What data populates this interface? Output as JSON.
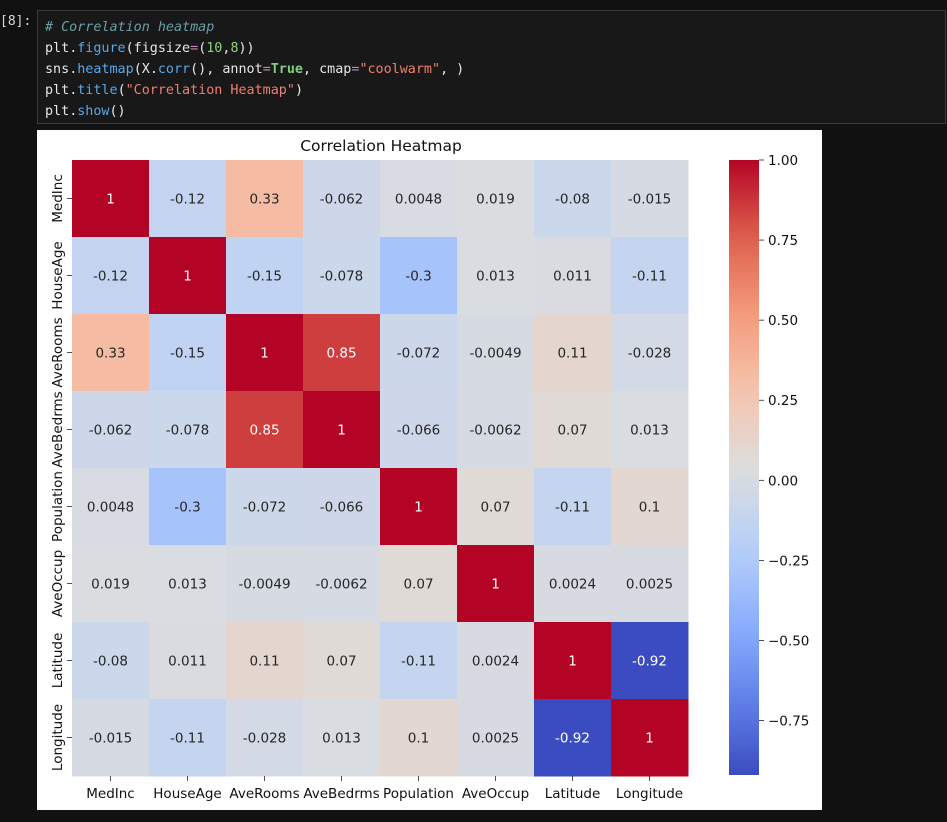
{
  "cell": {
    "prompt": "[8]:",
    "code_lines": [
      [
        {
          "t": "# Correlation heatmap",
          "c": "c-comment"
        }
      ],
      [
        {
          "t": "plt"
        },
        {
          "t": ".",
          "c": ""
        },
        {
          "t": "figure",
          "c": "c-attr"
        },
        {
          "t": "(figsize"
        },
        {
          "t": "=",
          "c": "c-op"
        },
        {
          "t": "("
        },
        {
          "t": "10",
          "c": "c-num"
        },
        {
          "t": ","
        },
        {
          "t": "8",
          "c": "c-num"
        },
        {
          "t": "))"
        }
      ],
      [
        {
          "t": "sns"
        },
        {
          "t": "."
        },
        {
          "t": "heatmap",
          "c": "c-attr"
        },
        {
          "t": "(X"
        },
        {
          "t": "."
        },
        {
          "t": "corr",
          "c": "c-attr"
        },
        {
          "t": "(), annot"
        },
        {
          "t": "=",
          "c": "c-op"
        },
        {
          "t": "True",
          "c": "c-kw"
        },
        {
          "t": ", cmap"
        },
        {
          "t": "=",
          "c": "c-op"
        },
        {
          "t": "\"coolwarm\"",
          "c": "c-str"
        },
        {
          "t": ", )"
        }
      ],
      [
        {
          "t": "plt"
        },
        {
          "t": "."
        },
        {
          "t": "title",
          "c": "c-attr"
        },
        {
          "t": "("
        },
        {
          "t": "\"Correlation Heatmap\"",
          "c": "c-str"
        },
        {
          "t": ")"
        }
      ],
      [
        {
          "t": "plt"
        },
        {
          "t": "."
        },
        {
          "t": "show",
          "c": "c-attr"
        },
        {
          "t": "()"
        }
      ]
    ]
  },
  "chart_data": {
    "type": "heatmap",
    "title": "Correlation Heatmap",
    "xlabel": "",
    "ylabel": "",
    "colormap": "coolwarm",
    "vmin": -0.92,
    "vmax": 1.0,
    "labels": [
      "MedInc",
      "HouseAge",
      "AveRooms",
      "AveBedrms",
      "Population",
      "AveOccup",
      "Latitude",
      "Longitude"
    ],
    "annotations": [
      [
        "1",
        "-0.12",
        "0.33",
        "-0.062",
        "0.0048",
        "0.019",
        "-0.08",
        "-0.015"
      ],
      [
        "-0.12",
        "1",
        "-0.15",
        "-0.078",
        "-0.3",
        "0.013",
        "0.011",
        "-0.11"
      ],
      [
        "0.33",
        "-0.15",
        "1",
        "0.85",
        "-0.072",
        "-0.0049",
        "0.11",
        "-0.028"
      ],
      [
        "-0.062",
        "-0.078",
        "0.85",
        "1",
        "-0.066",
        "-0.0062",
        "0.07",
        "0.013"
      ],
      [
        "0.0048",
        "-0.3",
        "-0.072",
        "-0.066",
        "1",
        "0.07",
        "-0.11",
        "0.1"
      ],
      [
        "0.019",
        "0.013",
        "-0.0049",
        "-0.0062",
        "0.07",
        "1",
        "0.0024",
        "0.0025"
      ],
      [
        "-0.08",
        "0.011",
        "0.11",
        "0.07",
        "-0.11",
        "0.0024",
        "1",
        "-0.92"
      ],
      [
        "-0.015",
        "-0.11",
        "-0.028",
        "0.013",
        "0.1",
        "0.0025",
        "-0.92",
        "1"
      ]
    ],
    "colorbar_ticks": [
      1.0,
      0.75,
      0.5,
      0.25,
      0.0,
      -0.25,
      -0.5,
      -0.75
    ],
    "colorbar_tick_labels": [
      "1.00",
      "0.75",
      "0.50",
      "0.25",
      "0.00",
      "−0.25",
      "−0.50",
      "−0.75"
    ]
  }
}
